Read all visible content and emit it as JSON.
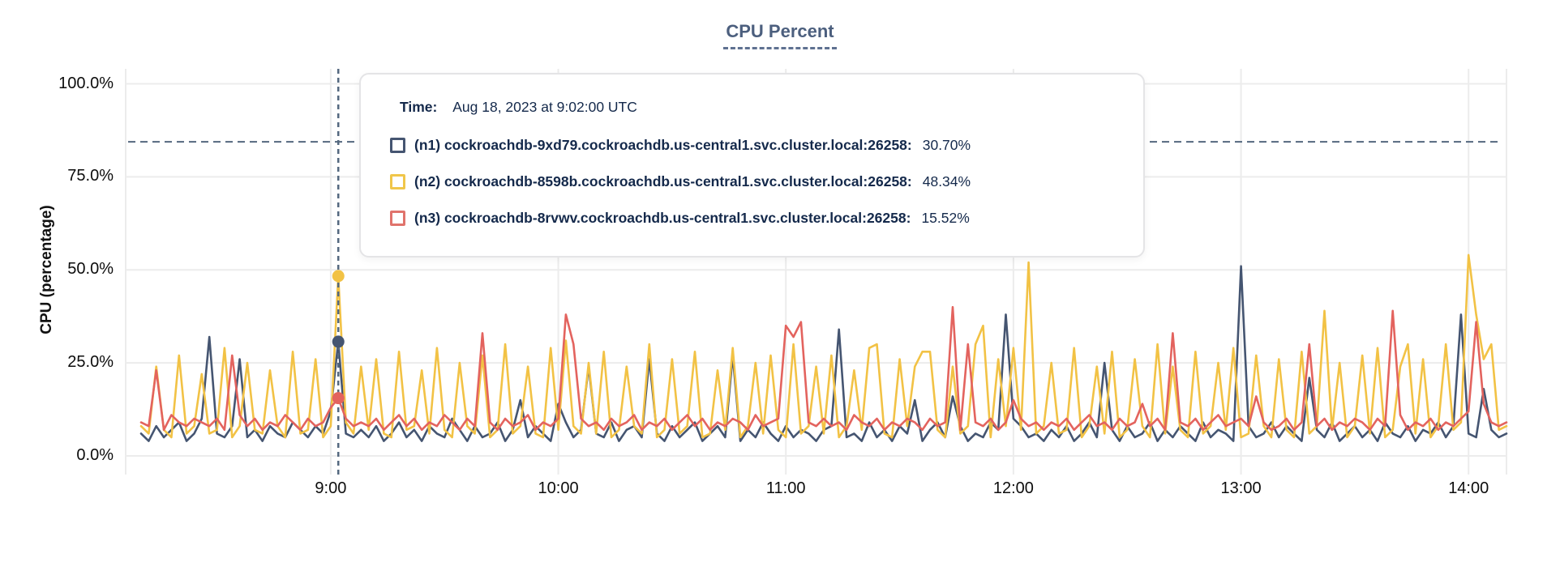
{
  "title": "CPU Percent",
  "tooltip": {
    "time_label": "Time:",
    "time_value": "Aug 18, 2023 at 9:02:00 UTC",
    "rows": [
      {
        "label": "(n1) cockroachdb-9xd79.cockroachdb.us-central1.svc.cluster.local:26258:",
        "value": "30.70%",
        "color": "#455571"
      },
      {
        "label": "(n2) cockroachdb-8598b.cockroachdb.us-central1.svc.cluster.local:26258:",
        "value": "48.34%",
        "color": "#f0c64a"
      },
      {
        "label": "(n3) cockroachdb-8rvwv.cockroachdb.us-central1.svc.cluster.local:26258:",
        "value": "15.52%",
        "color": "#e0736c"
      }
    ]
  },
  "colors": {
    "grid": "#ececec",
    "dashed_guides": "#54687f",
    "title": "#4c5f7e",
    "tooltip_text": "#14294b"
  },
  "chart_data": {
    "type": "line",
    "title": "CPU Percent",
    "xlabel": "",
    "ylabel": "CPU (percentage)",
    "ylim": [
      0,
      100
    ],
    "x_domain": [
      "8:10",
      "14:10"
    ],
    "x_step_minutes": 2,
    "grid": true,
    "legend_position": "tooltip-overlay",
    "yticks": [
      {
        "value": 0,
        "label": "0.0%"
      },
      {
        "value": 25,
        "label": "25.0%"
      },
      {
        "value": 50,
        "label": "50.0%"
      },
      {
        "value": 75,
        "label": "75.0%"
      },
      {
        "value": 100,
        "label": "100.0%"
      }
    ],
    "xticks": [
      {
        "index": 25,
        "label": "9:00"
      },
      {
        "index": 55,
        "label": "10:00"
      },
      {
        "index": 85,
        "label": "11:00"
      },
      {
        "index": 115,
        "label": "12:00"
      },
      {
        "index": 145,
        "label": "13:00"
      },
      {
        "index": 175,
        "label": "14:00"
      }
    ],
    "threshold_percent": 84.4,
    "hover": {
      "index": 26,
      "time": "Aug 18, 2023 at 9:02:00 UTC",
      "values": [
        30.7,
        48.34,
        15.52
      ]
    },
    "series": [
      {
        "name": "n1",
        "host": "cockroachdb-9xd79.cockroachdb.us-central1.svc.cluster.local:26258",
        "color": "#455571",
        "values": [
          6,
          4,
          8,
          5,
          7,
          9,
          4,
          6,
          10,
          32,
          6,
          5,
          8,
          26,
          5,
          7,
          4,
          8,
          6,
          5,
          9,
          7,
          5,
          8,
          6,
          12,
          30.7,
          6,
          5,
          7,
          5,
          8,
          4,
          6,
          9,
          5,
          7,
          4,
          8,
          6,
          5,
          10,
          7,
          4,
          8,
          5,
          6,
          9,
          4,
          7,
          15,
          5,
          8,
          6,
          4,
          14,
          9,
          5,
          7,
          24,
          6,
          5,
          9,
          4,
          7,
          8,
          5,
          26,
          6,
          4,
          8,
          5,
          7,
          9,
          4,
          6,
          8,
          5,
          27,
          4,
          7,
          5,
          9,
          6,
          4,
          8,
          5,
          7,
          6,
          4,
          7,
          8,
          34,
          5,
          6,
          4,
          9,
          5,
          7,
          4,
          8,
          6,
          15,
          4,
          7,
          9,
          5,
          16,
          8,
          4,
          6,
          5,
          9,
          7,
          38,
          10,
          8,
          5,
          6,
          4,
          7,
          5,
          8,
          4,
          6,
          9,
          5,
          25,
          7,
          4,
          8,
          5,
          6,
          9,
          4,
          7,
          5,
          8,
          6,
          4,
          9,
          5,
          7,
          6,
          4,
          51,
          8,
          5,
          6,
          9,
          5,
          8,
          6,
          4,
          21,
          7,
          5,
          9,
          4,
          6,
          8,
          5,
          7,
          4,
          9,
          6,
          5,
          8,
          4,
          7,
          6,
          9,
          5,
          8,
          38,
          6,
          5,
          18,
          7,
          5,
          6
        ]
      },
      {
        "name": "n2",
        "host": "cockroachdb-8598b.cockroachdb.us-central1.svc.cluster.local:26258",
        "color": "#f2c245",
        "values": [
          8,
          6,
          24,
          7,
          5,
          27,
          6,
          8,
          22,
          6,
          7,
          29,
          5,
          8,
          25,
          7,
          6,
          23,
          8,
          5,
          28,
          6,
          7,
          26,
          5,
          8,
          48.34,
          9,
          6,
          24,
          7,
          26,
          6,
          5,
          28,
          7,
          8,
          23,
          6,
          29,
          7,
          5,
          25,
          8,
          6,
          27,
          5,
          7,
          30,
          6,
          8,
          24,
          6,
          5,
          29,
          7,
          31,
          8,
          6,
          25,
          6,
          28,
          5,
          7,
          24,
          8,
          6,
          30,
          5,
          7,
          26,
          6,
          8,
          28,
          5,
          6,
          23,
          7,
          29,
          5,
          8,
          25,
          6,
          27,
          7,
          5,
          30,
          6,
          8,
          24,
          6,
          27,
          5,
          8,
          23,
          7,
          29,
          30,
          6,
          5,
          26,
          8,
          24,
          28,
          28,
          7,
          5,
          24,
          6,
          8,
          30,
          35,
          5,
          26,
          8,
          29,
          7,
          52,
          6,
          8,
          25,
          6,
          7,
          29,
          5,
          8,
          24,
          6,
          28,
          5,
          7,
          26,
          8,
          5,
          30,
          6,
          24,
          7,
          5,
          28,
          6,
          8,
          25,
          7,
          29,
          5,
          6,
          27,
          8,
          5,
          26,
          7,
          5,
          28,
          6,
          8,
          39,
          7,
          25,
          5,
          8,
          27,
          6,
          29,
          5,
          7,
          24,
          30,
          6,
          26,
          5,
          8,
          30,
          7,
          9,
          54,
          38,
          26,
          30,
          7,
          8
        ]
      },
      {
        "name": "n3",
        "host": "cockroachdb-8rvwv.cockroachdb.us-central1.svc.cluster.local:26258",
        "color": "#e3635e",
        "values": [
          9,
          8,
          23,
          7,
          11,
          9,
          8,
          10,
          9,
          8,
          10,
          7,
          27,
          11,
          8,
          10,
          7,
          9,
          8,
          11,
          9,
          7,
          10,
          8,
          9,
          13,
          15.52,
          10,
          8,
          9,
          8,
          10,
          7,
          9,
          11,
          8,
          10,
          7,
          9,
          8,
          11,
          9,
          7,
          10,
          8,
          33,
          9,
          7,
          10,
          8,
          9,
          11,
          7,
          9,
          8,
          10,
          38,
          30,
          10,
          8,
          9,
          7,
          10,
          8,
          9,
          11,
          7,
          9,
          8,
          10,
          7,
          9,
          11,
          8,
          10,
          7,
          9,
          8,
          10,
          9,
          7,
          11,
          8,
          9,
          10,
          35,
          32,
          36,
          9,
          8,
          10,
          8,
          9,
          7,
          11,
          9,
          8,
          10,
          7,
          9,
          8,
          10,
          9,
          7,
          10,
          8,
          9,
          40,
          7,
          30,
          9,
          8,
          10,
          7,
          9,
          15,
          10,
          8,
          9,
          7,
          9,
          8,
          10,
          7,
          9,
          11,
          8,
          9,
          7,
          10,
          8,
          9,
          14,
          8,
          10,
          7,
          33,
          9,
          8,
          10,
          7,
          9,
          11,
          8,
          9,
          10,
          8,
          16,
          9,
          7,
          8,
          10,
          7,
          9,
          30,
          8,
          10,
          7,
          9,
          8,
          10,
          9,
          7,
          10,
          8,
          39,
          11,
          7,
          9,
          8,
          10,
          7,
          9,
          8,
          10,
          12,
          36,
          14,
          9,
          8,
          9
        ]
      }
    ]
  }
}
